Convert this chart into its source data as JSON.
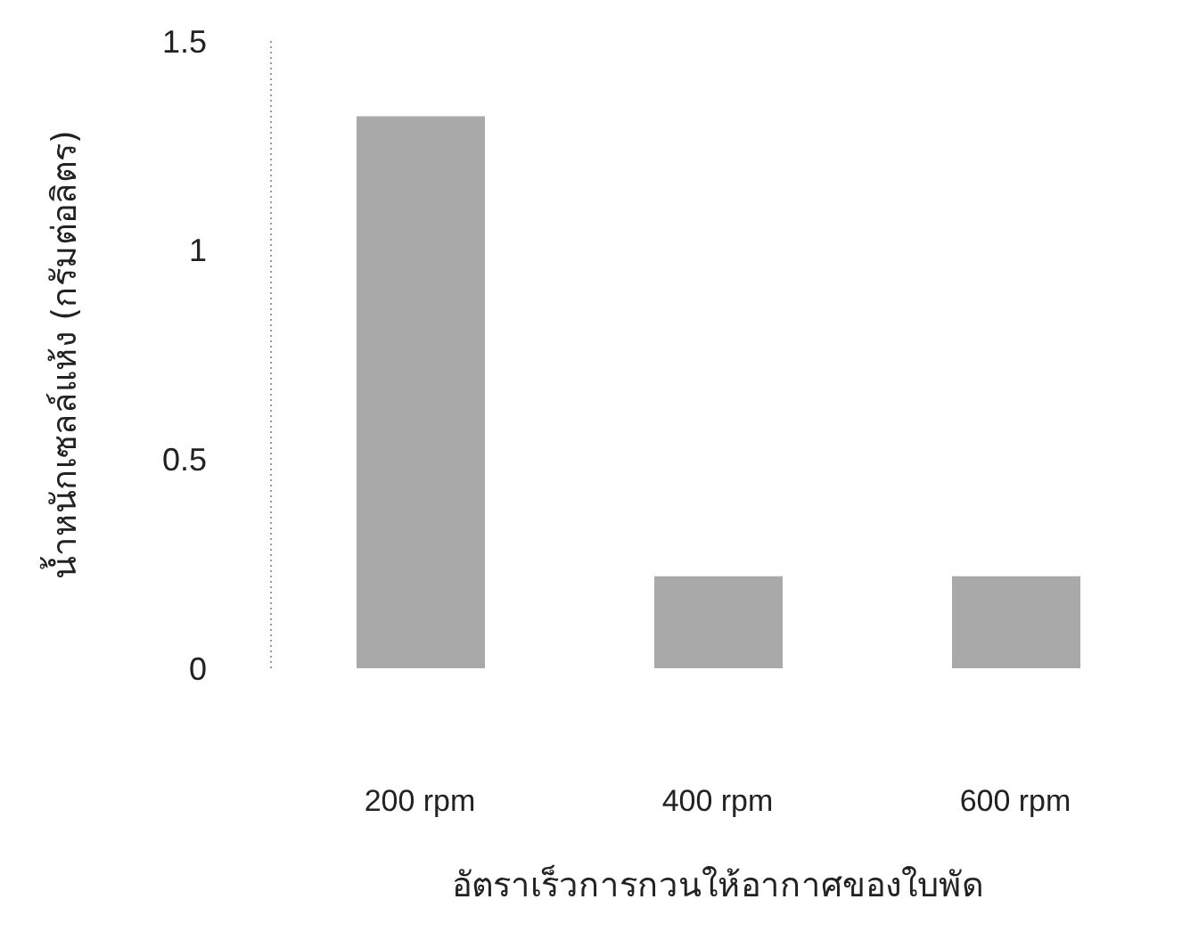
{
  "chart_data": {
    "type": "bar",
    "xlabel": "อัตราเร็วการกวนให้อากาศของใบพัด",
    "ylabel": "น้ำหนักเซลล์แห้ง (กรัมต่อลิตร)",
    "categories": [
      "200 rpm",
      "400 rpm",
      "600 rpm"
    ],
    "values": [
      1.32,
      0.22,
      0.22
    ],
    "color": "#a9a9a9",
    "ylim": [
      0,
      1.5
    ],
    "yticks": [
      0,
      0.5,
      1,
      1.5
    ],
    "grid": false
  }
}
